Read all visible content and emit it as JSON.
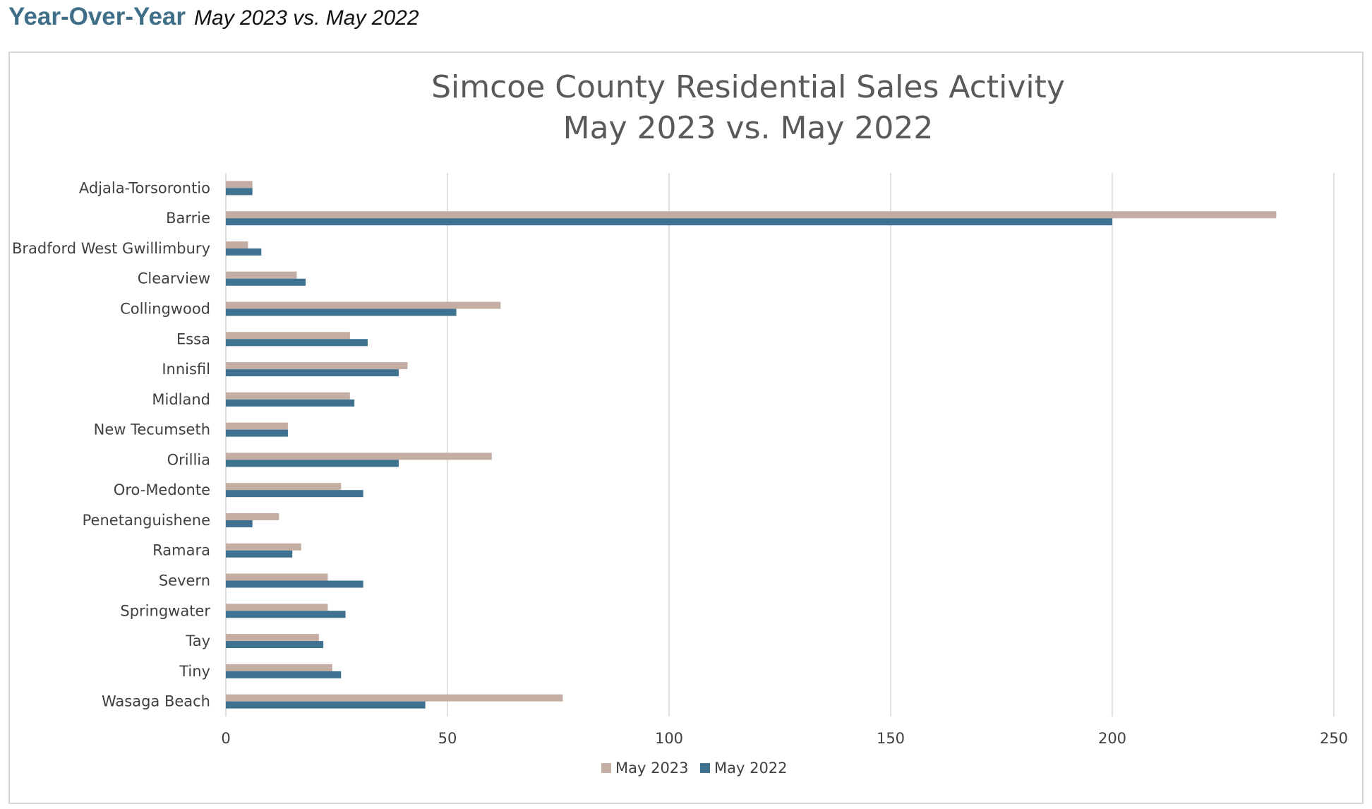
{
  "header": {
    "title": "Year-Over-Year",
    "subtitle": "May 2023 vs. May 2022"
  },
  "colors": {
    "header_title": "#3f6f88",
    "series_2023": "#c4aea3",
    "series_2022": "#3e7290",
    "gridline": "#d9d9d9",
    "text": "#404040"
  },
  "chart_data": {
    "type": "bar",
    "orientation": "horizontal",
    "title": "Simcoe County Residential Sales Activity",
    "subtitle": "May 2023 vs. May 2022",
    "categories": [
      "Adjala-Torsorontio",
      "Barrie",
      "Bradford West Gwillimbury",
      "Clearview",
      "Collingwood",
      "Essa",
      "Innisfil",
      "Midland",
      "New Tecumseth",
      "Orillia",
      "Oro-Medonte",
      "Penetanguishene",
      "Ramara",
      "Severn",
      "Springwater",
      "Tay",
      "Tiny",
      "Wasaga Beach"
    ],
    "series": [
      {
        "name": "May 2023",
        "color": "#c4aea3",
        "values": [
          6,
          237,
          5,
          16,
          62,
          28,
          41,
          28,
          14,
          60,
          26,
          12,
          17,
          23,
          23,
          21,
          24,
          76
        ]
      },
      {
        "name": "May 2022",
        "color": "#3e7290",
        "values": [
          6,
          200,
          8,
          18,
          52,
          32,
          39,
          29,
          14,
          39,
          31,
          6,
          15,
          31,
          27,
          22,
          26,
          45
        ]
      }
    ],
    "xlim": [
      0,
      250
    ],
    "xticks": [
      "0",
      "50",
      "100",
      "150",
      "200",
      "250"
    ],
    "grid": true,
    "legend_position": "bottom"
  }
}
